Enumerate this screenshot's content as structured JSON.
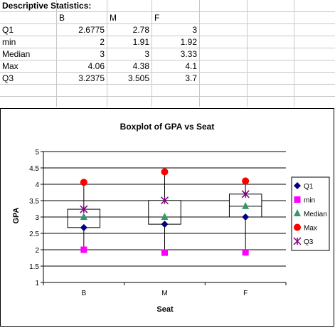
{
  "sheet": {
    "title": "Descriptive Statistics:",
    "headers": [
      "",
      "B",
      "M",
      "F"
    ],
    "rows": [
      {
        "label": "Q1",
        "cells": [
          "2.6775",
          "2.78",
          "3"
        ]
      },
      {
        "label": "min",
        "cells": [
          "2",
          "1.91",
          "1.92"
        ]
      },
      {
        "label": "Median",
        "cells": [
          "3",
          "3",
          "3.33"
        ]
      },
      {
        "label": "Max",
        "cells": [
          "4.06",
          "4.38",
          "4.1"
        ]
      },
      {
        "label": "Q3",
        "cells": [
          "3.2375",
          "3.505",
          "3.7"
        ]
      }
    ]
  },
  "chart_data": {
    "type": "boxplot",
    "title": "Boxplot of GPA vs Seat",
    "xlabel": "Seat",
    "ylabel": "GPA",
    "ylim": [
      1,
      5
    ],
    "yticks": [
      "1",
      "1.5",
      "2",
      "2.5",
      "3",
      "3.5",
      "4",
      "4.5",
      "5"
    ],
    "grid": true,
    "legend_position": "right",
    "categories": [
      "B",
      "M",
      "F"
    ],
    "series": [
      {
        "name": "Q1",
        "values": [
          2.6775,
          2.78,
          3
        ],
        "marker": "diamond",
        "color": "#000080"
      },
      {
        "name": "min",
        "values": [
          2,
          1.91,
          1.92
        ],
        "marker": "square",
        "color": "#ff00ff"
      },
      {
        "name": "Median",
        "values": [
          3,
          3,
          3.33
        ],
        "marker": "triangle",
        "color": "#339966"
      },
      {
        "name": "Max",
        "values": [
          4.06,
          4.38,
          4.1
        ],
        "marker": "circle",
        "color": "#ff0000"
      },
      {
        "name": "Q3",
        "values": [
          3.2375,
          3.505,
          3.7
        ],
        "marker": "star",
        "color": "#800080"
      }
    ]
  }
}
